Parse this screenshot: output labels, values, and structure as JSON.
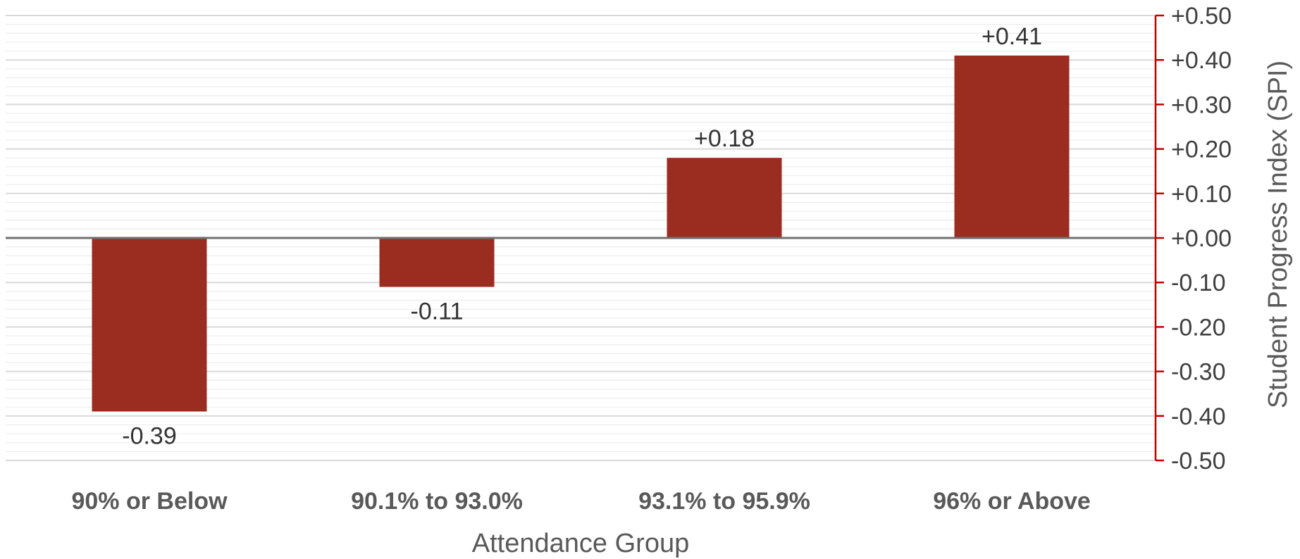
{
  "chart_data": {
    "type": "bar",
    "categories": [
      "90% or Below",
      "90.1% to 93.0%",
      "93.1% to 95.9%",
      "96% or Above"
    ],
    "values": [
      -0.39,
      -0.11,
      0.18,
      0.41
    ],
    "data_labels": [
      "-0.39",
      "-0.11",
      "+0.18",
      "+0.41"
    ],
    "xlabel": "Attendance Group",
    "ylabel": "Student Progress Index (SPI)",
    "ylim": [
      -0.5,
      0.5
    ],
    "yticks": [
      0.5,
      0.4,
      0.3,
      0.2,
      0.1,
      0.0,
      -0.1,
      -0.2,
      -0.3,
      -0.4,
      -0.5
    ],
    "ytick_labels": [
      "+0.50",
      "+0.40",
      "+0.30",
      "+0.20",
      "+0.10",
      "+0.00",
      "-0.10",
      "-0.20",
      "-0.30",
      "-0.40",
      "-0.50"
    ],
    "y_axis_position": "right",
    "grid": true,
    "colors": {
      "bar": "#9B2C20",
      "axis": "#C00000",
      "zero_line": "#707070",
      "grid": "#D9D9D9"
    }
  }
}
